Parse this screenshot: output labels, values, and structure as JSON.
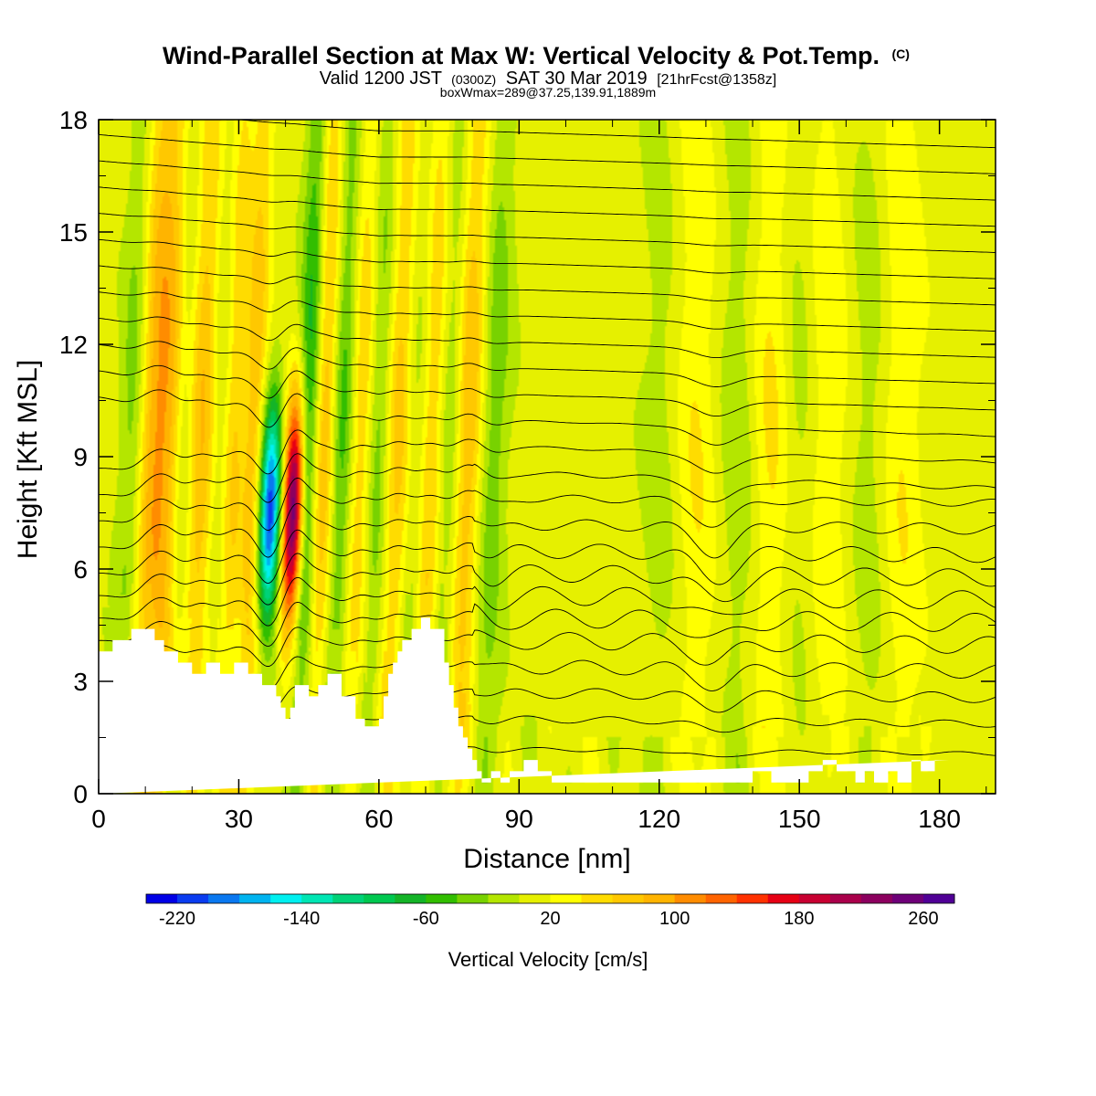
{
  "chart_data": {
    "type": "heatmap",
    "title": "Wind-Parallel Section at Max W: Vertical Velocity & Pot.Temp.",
    "title_unit": "(C)",
    "subtitle_prefix": "Valid 1200 JST",
    "subtitle_zulu": "(0300Z)",
    "subtitle_date": "SAT 30 Mar 2019",
    "subtitle_fcst": "[21hrFcst@1358z]",
    "subtitle2": "boxWmax=289@37.25,139.91,1889m",
    "xlabel": "Distance [nm]",
    "ylabel": "Height [Kft MSL]",
    "xlim": [
      0,
      192
    ],
    "ylim": [
      0,
      18
    ],
    "x_ticks": [
      "0",
      "30",
      "60",
      "90",
      "120",
      "150",
      "180"
    ],
    "y_ticks": [
      "0",
      "3",
      "6",
      "9",
      "12",
      "15",
      "18"
    ],
    "grid": false,
    "colorbar": {
      "label": "Vertical Velocity [cm/s]",
      "min": -240,
      "max": 280,
      "step": 20,
      "tick_labels": [
        "-220",
        "-140",
        "-60",
        "20",
        "100",
        "180",
        "260"
      ],
      "tick_values": [
        -220,
        -140,
        -60,
        20,
        100,
        180,
        260
      ],
      "colors": [
        "#0000e6",
        "#0a3cf0",
        "#0a78f0",
        "#00b4f0",
        "#00f0f0",
        "#00e6b4",
        "#00d278",
        "#00c850",
        "#14b428",
        "#32be00",
        "#78d200",
        "#b4e600",
        "#e6f000",
        "#ffff00",
        "#ffdc00",
        "#ffc800",
        "#ffb400",
        "#ff8c00",
        "#ff6400",
        "#ff3200",
        "#e60014",
        "#c80032",
        "#aa004b",
        "#8c005f",
        "#6e0078",
        "#500096"
      ]
    },
    "terrain_profile": {
      "x": [
        0,
        3,
        3,
        7,
        7,
        12,
        12,
        14,
        14,
        17,
        17,
        20,
        20,
        23,
        23,
        26,
        26,
        29,
        29,
        32,
        32,
        35,
        35,
        38,
        38,
        39,
        39,
        40,
        40,
        41,
        41,
        42,
        42,
        45,
        45,
        47,
        47,
        49,
        49,
        52,
        52,
        55,
        55,
        57,
        57,
        58,
        58,
        60,
        60,
        61,
        61,
        62,
        62,
        63,
        63,
        64,
        64,
        65,
        65,
        67,
        67,
        69,
        69,
        71,
        71,
        74,
        74,
        75,
        75,
        76,
        76,
        77,
        77,
        78,
        78,
        79,
        79,
        80,
        80,
        81,
        81,
        82,
        82,
        84,
        84,
        86,
        86,
        88,
        88,
        91,
        91,
        94,
        94,
        97,
        97,
        100,
        100,
        103,
        103,
        110,
        110,
        120,
        120,
        130,
        130,
        140,
        140,
        144,
        144,
        148,
        148,
        152,
        152,
        155,
        155,
        158,
        158,
        162,
        162,
        164,
        164,
        166,
        166,
        169,
        169,
        171,
        171,
        174,
        174,
        176,
        176,
        179,
        179,
        182,
        182,
        192
      ],
      "height": [
        3.8,
        3.8,
        4.1,
        4.1,
        4.4,
        4.4,
        4.1,
        4.1,
        3.8,
        3.8,
        3.5,
        3.5,
        3.2,
        3.2,
        3.5,
        3.5,
        3.2,
        3.2,
        3.5,
        3.5,
        3.2,
        3.2,
        2.9,
        2.9,
        2.6,
        2.6,
        2.3,
        2.3,
        2,
        2,
        2.3,
        2.3,
        2.9,
        2.9,
        2.6,
        2.6,
        2.9,
        2.9,
        3.2,
        3.2,
        2.6,
        2.6,
        2,
        2,
        1.8,
        1.8,
        1.8,
        1.8,
        2,
        2,
        2.6,
        2.6,
        3.2,
        3.2,
        3.5,
        3.5,
        3.8,
        3.8,
        4.1,
        4.1,
        4.4,
        4.4,
        4.7,
        4.7,
        4.4,
        4.4,
        3.5,
        3.5,
        2.9,
        2.9,
        2.3,
        2.3,
        1.8,
        1.8,
        1.5,
        1.5,
        1.2,
        1.2,
        0.9,
        0.9,
        0.6,
        0.6,
        0.3,
        0.3,
        0.6,
        0.6,
        0.3,
        0.3,
        0.6,
        0.6,
        0.9,
        0.9,
        0.6,
        0.6,
        0.3,
        0.3,
        0.3,
        0.3,
        0.3,
        0.3,
        0.3,
        0.3,
        0.3,
        0.3,
        0.3,
        0.3,
        0.6,
        0.6,
        0.3,
        0.3,
        0.3,
        0.3,
        0.6,
        0.6,
        0.9,
        0.9,
        0.6,
        0.6,
        0.3,
        0.3,
        0.6,
        0.6,
        0.3,
        0.3,
        0.6,
        0.6,
        0.3,
        0.3,
        0.9,
        0.9,
        0.6,
        0.6,
        0.9,
        0.9,
        0.9
      ]
    },
    "updraft_bands": [
      {
        "x": 11,
        "peak_cm_s": 60,
        "width_nm": 2.0
      },
      {
        "x": 15,
        "peak_cm_s": 90,
        "width_nm": 2.5
      },
      {
        "x": 22,
        "peak_cm_s": 80,
        "width_nm": 2.5
      },
      {
        "x": 29,
        "peak_cm_s": 80,
        "width_nm": 2.5
      },
      {
        "x": 33,
        "peak_cm_s": 60,
        "width_nm": 1.8
      },
      {
        "x": 42,
        "peak_cm_s": 260,
        "width_nm": 1.5
      },
      {
        "x": 48,
        "peak_cm_s": 90,
        "width_nm": 2.0
      },
      {
        "x": 56,
        "peak_cm_s": 60,
        "width_nm": 2.0
      },
      {
        "x": 64,
        "peak_cm_s": 70,
        "width_nm": 2.5
      },
      {
        "x": 71,
        "peak_cm_s": 70,
        "width_nm": 2.5
      },
      {
        "x": 79,
        "peak_cm_s": 80,
        "width_nm": 2.5
      },
      {
        "x": 128,
        "peak_cm_s": 30,
        "width_nm": 3.0
      },
      {
        "x": 144,
        "peak_cm_s": 35,
        "width_nm": 3.0
      },
      {
        "x": 156,
        "peak_cm_s": 30,
        "width_nm": 3.0
      },
      {
        "x": 172,
        "peak_cm_s": 30,
        "width_nm": 3.0
      }
    ],
    "downdraft_bands": [
      {
        "x": 7,
        "peak_cm_s": -40,
        "width_nm": 2.0
      },
      {
        "x": 18,
        "peak_cm_s": -60,
        "width_nm": 2.0
      },
      {
        "x": 26,
        "peak_cm_s": -60,
        "width_nm": 2.0
      },
      {
        "x": 31,
        "peak_cm_s": -40,
        "width_nm": 1.5
      },
      {
        "x": 37,
        "peak_cm_s": -220,
        "width_nm": 1.6
      },
      {
        "x": 45,
        "peak_cm_s": -100,
        "width_nm": 1.8
      },
      {
        "x": 52,
        "peak_cm_s": -70,
        "width_nm": 2.0
      },
      {
        "x": 60,
        "peak_cm_s": -60,
        "width_nm": 2.0
      },
      {
        "x": 68,
        "peak_cm_s": -60,
        "width_nm": 2.0
      },
      {
        "x": 75,
        "peak_cm_s": -60,
        "width_nm": 2.0
      },
      {
        "x": 84,
        "peak_cm_s": -50,
        "width_nm": 2.5
      },
      {
        "x": 120,
        "peak_cm_s": -20,
        "width_nm": 3.0
      },
      {
        "x": 137,
        "peak_cm_s": -25,
        "width_nm": 3.0
      },
      {
        "x": 150,
        "peak_cm_s": -20,
        "width_nm": 3.0
      },
      {
        "x": 165,
        "peak_cm_s": -20,
        "width_nm": 3.0
      }
    ],
    "isentrope_levels_kft": [
      1.2,
      2.0,
      2.7,
      3.4,
      4.1,
      4.7,
      5.3,
      5.9,
      6.5,
      7.2,
      7.9,
      8.6,
      9.3,
      10.0,
      10.7,
      11.4,
      12.1,
      12.8,
      13.5,
      14.2,
      14.9,
      15.6,
      16.3,
      17.0,
      17.7
    ]
  }
}
